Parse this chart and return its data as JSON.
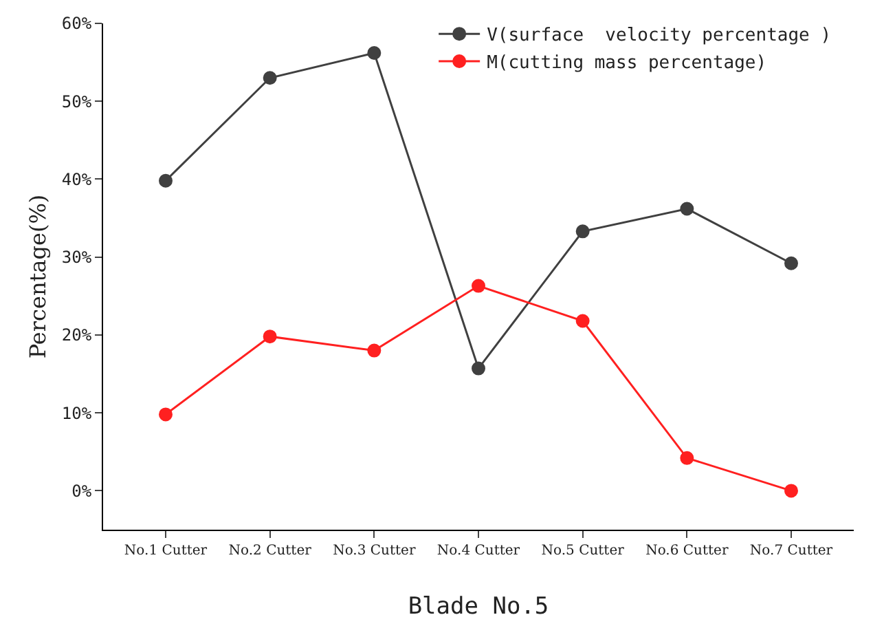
{
  "chart_data": {
    "type": "line",
    "xlabel": "Blade No.5",
    "ylabel": "Percentage(%)",
    "categories": [
      "No.1 Cutter",
      "No.2 Cutter",
      "No.3 Cutter",
      "No.4 Cutter",
      "No.5 Cutter",
      "No.6 Cutter",
      "No.7 Cutter"
    ],
    "series": [
      {
        "name": "V(surface  velocity percentage )",
        "color": "#404040",
        "values": [
          39.8,
          53.0,
          56.2,
          15.7,
          33.3,
          36.2,
          29.2
        ]
      },
      {
        "name": "M(cutting mass percentage)",
        "color": "#ff2020",
        "values": [
          9.8,
          19.8,
          18.0,
          26.3,
          21.8,
          4.2,
          0
        ]
      }
    ],
    "ylim": [
      -5,
      60
    ],
    "yticks": [
      {
        "value": 0,
        "label": "0%"
      },
      {
        "value": 10,
        "label": "10%"
      },
      {
        "value": 20,
        "label": "20%"
      },
      {
        "value": 30,
        "label": "30%"
      },
      {
        "value": 40,
        "label": "40%"
      },
      {
        "value": 50,
        "label": "50%"
      },
      {
        "value": 60,
        "label": "60%"
      }
    ],
    "marker": "circle",
    "line_style": "solid",
    "grid": false,
    "legend": "top right"
  }
}
